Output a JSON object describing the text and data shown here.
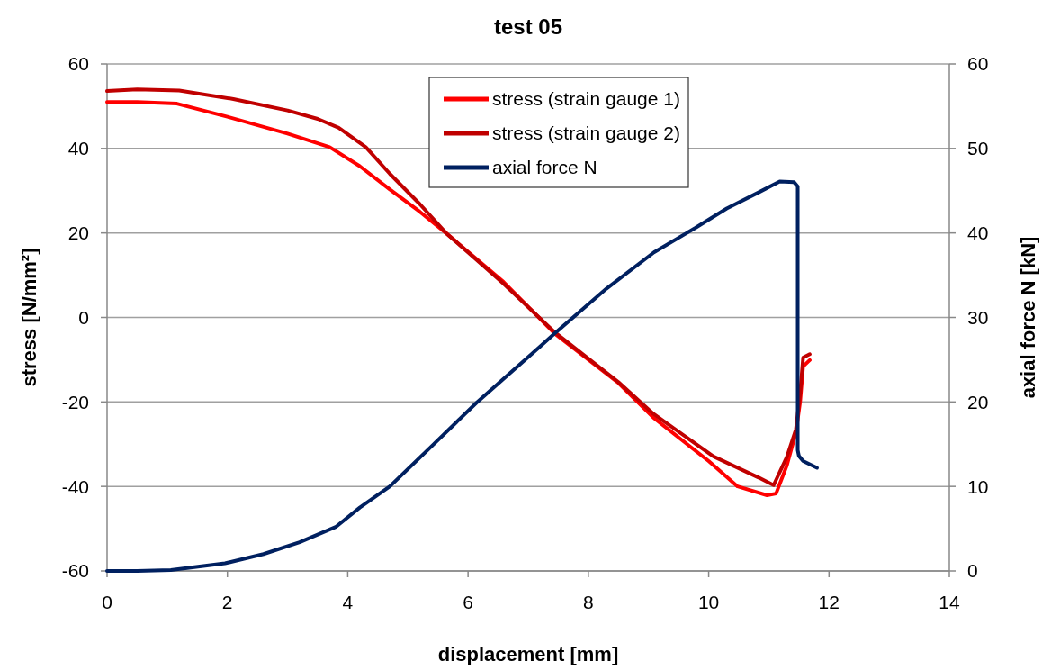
{
  "chart_data": {
    "type": "line",
    "title": "test 05",
    "xlabel": "displacement [mm]",
    "ylabel": "stress [N/mm²]",
    "y2label": "axial force N [kN]",
    "xlim": [
      0,
      14
    ],
    "xticks": [
      0,
      2,
      4,
      6,
      8,
      10,
      12,
      14
    ],
    "ylim": [
      -60,
      60
    ],
    "yticks": [
      -60,
      -40,
      -20,
      0,
      20,
      40,
      60
    ],
    "y2lim": [
      0,
      60
    ],
    "y2ticks": [
      0,
      10,
      20,
      30,
      40,
      50,
      60
    ],
    "grid": "y",
    "legend": "top",
    "marker": "none",
    "line_style": "solid",
    "series": [
      {
        "name": "stress (strain gauge 1)",
        "color": "#ff0000",
        "x": [
          0,
          0.5,
          1.16,
          2,
          3,
          3.7,
          4.2,
          4.7,
          5.2,
          5.64,
          6.59,
          7.44,
          8.5,
          9.08,
          10,
          10.48,
          10.97,
          11.12,
          11.3,
          11.45,
          11.52,
          11.57,
          11.68
        ],
        "values": [
          51,
          51,
          50.6,
          47.5,
          43.5,
          40.3,
          35.8,
          30.3,
          25,
          19.9,
          8.4,
          -3.8,
          -15.5,
          -23.7,
          -34,
          -40,
          -42.1,
          -41.7,
          -35,
          -27.2,
          -20,
          -11.6,
          -10.1
        ]
      },
      {
        "name": "stress (strain gauge 2)",
        "color": "#c00000",
        "x": [
          0,
          0.5,
          1.2,
          2.1,
          3,
          3.5,
          3.85,
          4.3,
          4.7,
          5.2,
          5.64,
          6.59,
          7.44,
          8.5,
          9.08,
          10.08,
          10.83,
          11.08,
          11.3,
          11.45,
          11.52,
          11.57,
          11.68
        ],
        "values": [
          53.6,
          54,
          53.7,
          51.7,
          49,
          47,
          44.9,
          40.3,
          34,
          26.8,
          19.9,
          8,
          -3.5,
          -15.3,
          -22.8,
          -32.9,
          -37.9,
          -39.7,
          -33,
          -26.5,
          -18,
          -9.5,
          -8.7
        ]
      },
      {
        "name": "axial force N",
        "color": "#002060",
        "axis": "y2",
        "x": [
          0,
          0.5,
          1.06,
          1.96,
          2.6,
          3.2,
          3.8,
          4.2,
          4.7,
          5.4,
          6.14,
          7.19,
          7.44,
          8.3,
          9.09,
          9.78,
          10.3,
          10.83,
          11.18,
          11.42,
          11.48,
          11.48,
          11.5,
          11.57,
          11.8
        ],
        "values": [
          0,
          0,
          0.1,
          0.9,
          2,
          3.4,
          5.2,
          7.5,
          10,
          14.8,
          19.9,
          26.5,
          28.1,
          33.4,
          37.7,
          40.6,
          42.9,
          44.8,
          46.1,
          46,
          45.5,
          14.3,
          13.6,
          13,
          12.2
        ]
      }
    ]
  }
}
